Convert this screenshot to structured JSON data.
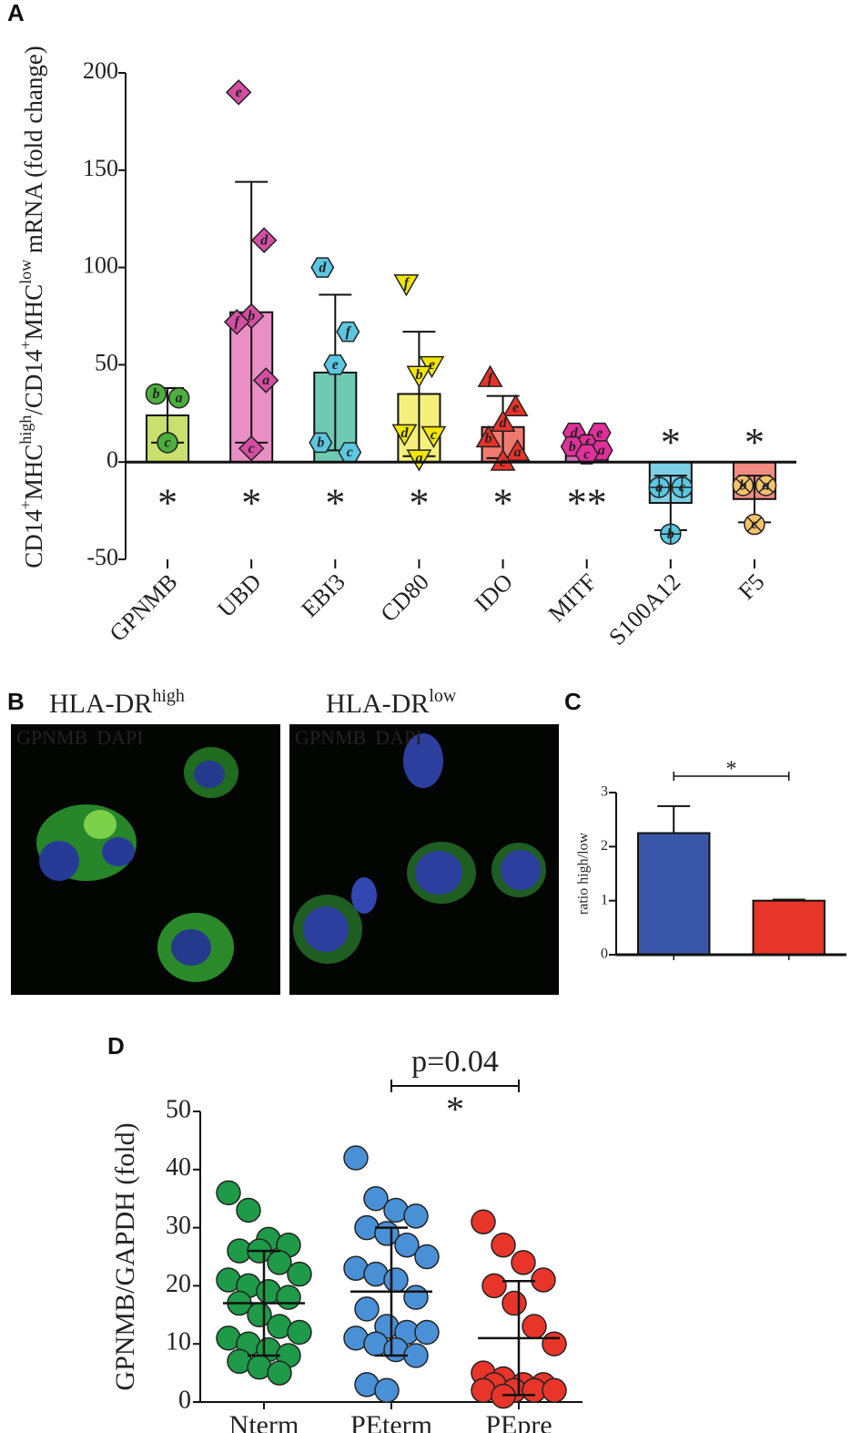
{
  "chart_data": [
    {
      "type": "bar",
      "panel_label": "A",
      "categories": [
        "GPNMB",
        "UBD",
        "EBI3",
        "CD80",
        "IDO",
        "MITF",
        "S100A12",
        "F5"
      ],
      "values": [
        24,
        77,
        46,
        35,
        18,
        9,
        -21,
        -19
      ],
      "errors": [
        14,
        67,
        40,
        32,
        16,
        5,
        14,
        12
      ],
      "error_direction": "both",
      "colors": [
        "#c9e06f",
        "#ea8fc6",
        "#6fcab4",
        "#f6ef7c",
        "#f17a70",
        "#d86cba",
        "#7dcfe6",
        "#f28b82"
      ],
      "markers": [
        "circle",
        "diamond",
        "hexagon",
        "triangle-down",
        "triangle",
        "hexagon",
        "circle-plus",
        "circle-x"
      ],
      "marker_colors": [
        "#4dae3f",
        "#d44fa3",
        "#5bc7e0",
        "#f2e600",
        "#e8332a",
        "#e0309a",
        "#5bc7e0",
        "#f5c36b"
      ],
      "label_colors": [
        "#000000",
        "#ffffff",
        "#000000",
        "#000000",
        "#ffffff",
        "#ffffff",
        "#000000",
        "#ffffff"
      ],
      "points": [
        [
          {
            "label": "b",
            "value": 35
          },
          {
            "label": "a",
            "value": 33
          },
          {
            "label": "c",
            "value": 10
          }
        ],
        [
          {
            "label": "e",
            "value": 190
          },
          {
            "label": "d",
            "value": 114
          },
          {
            "label": "b",
            "value": 75
          },
          {
            "label": "f",
            "value": 72
          },
          {
            "label": "a",
            "value": 42
          },
          {
            "label": "c",
            "value": 7
          }
        ],
        [
          {
            "label": "d",
            "value": 100
          },
          {
            "label": "f",
            "value": 67
          },
          {
            "label": "e",
            "value": 50
          },
          {
            "label": "b",
            "value": 10
          },
          {
            "label": "c",
            "value": 5
          }
        ],
        [
          {
            "label": "f",
            "value": 92
          },
          {
            "label": "e",
            "value": 50
          },
          {
            "label": "b",
            "value": 45
          },
          {
            "label": "d",
            "value": 15
          },
          {
            "label": "c",
            "value": 14
          },
          {
            "label": "a",
            "value": 2
          }
        ],
        [
          {
            "label": "f",
            "value": 43
          },
          {
            "label": "e",
            "value": 28
          },
          {
            "label": "d",
            "value": 20
          },
          {
            "label": "b",
            "value": 12
          },
          {
            "label": "a",
            "value": 5
          },
          {
            "label": "c",
            "value": 0
          }
        ],
        [
          {
            "label": "d",
            "value": 15
          },
          {
            "label": "e",
            "value": 15
          },
          {
            "label": "f",
            "value": 9
          },
          {
            "label": "b",
            "value": 8
          },
          {
            "label": "a",
            "value": 6
          },
          {
            "label": "c",
            "value": 4
          }
        ],
        [
          {
            "label": "a",
            "value": -13
          },
          {
            "label": "c",
            "value": -13
          },
          {
            "label": "b",
            "value": -37
          }
        ],
        [
          {
            "label": "b",
            "value": -12
          },
          {
            "label": "a",
            "value": -12
          },
          {
            "label": "c",
            "value": -32
          }
        ]
      ],
      "significance": [
        "*",
        "*",
        "*",
        "*",
        "*",
        "**",
        "*",
        "*"
      ],
      "ylim": [
        -50,
        200
      ],
      "yticks": [
        -50,
        0,
        50,
        100,
        150,
        200
      ],
      "ylabel_parts": [
        {
          "text": "CD14"
        },
        {
          "text": "+",
          "sup": true
        },
        {
          "text": "MHC"
        },
        {
          "text": "high",
          "sup": true
        },
        {
          "text": "/CD14"
        },
        {
          "text": "+",
          "sup": true
        },
        {
          "text": "MHC"
        },
        {
          "text": "low",
          "sup": true
        },
        {
          "text": " mRNA (fold change)"
        }
      ]
    },
    {
      "type": "bar",
      "panel_label": "C",
      "categories": [
        null,
        null
      ],
      "values": [
        2.25,
        1.0
      ],
      "errors": [
        0.5,
        0.02
      ],
      "error_direction": "up",
      "colors": [
        "#3a56a8",
        "#e8352a"
      ],
      "ylim": [
        0,
        3
      ],
      "yticks": [
        0,
        1,
        2,
        3
      ],
      "ylabel": "ratio high/low",
      "annotation": "*"
    },
    {
      "type": "strip",
      "panel_label": "D",
      "categories": [
        "Nterm",
        "PEterm",
        "PEpre"
      ],
      "colors": [
        "#1e9a48",
        "#4a90d6",
        "#e8352a"
      ],
      "values": [
        [
          36,
          33,
          28,
          27,
          26,
          26,
          24,
          22,
          21,
          20,
          19,
          18,
          17,
          15,
          13,
          12,
          11,
          10,
          9,
          8,
          7,
          6,
          5
        ],
        [
          42,
          35,
          33,
          32,
          30,
          29,
          27,
          25,
          23,
          22,
          21,
          18,
          16,
          13,
          12,
          12,
          11,
          10,
          9,
          8,
          3,
          2
        ],
        [
          31,
          27,
          24,
          21,
          20,
          17,
          13,
          10,
          5,
          4,
          3,
          3,
          3,
          2,
          2,
          2,
          2,
          1
        ]
      ],
      "means": [
        17,
        19,
        11
      ],
      "sd": [
        9,
        11,
        9.8
      ],
      "ylim": [
        0,
        50
      ],
      "yticks": [
        0,
        10,
        20,
        30,
        40,
        50
      ],
      "ylabel": "GPNMB/GAPDH (fold)",
      "annotation": "p=0.04",
      "annotation_2": "*"
    }
  ],
  "panel_b": {
    "panel_label": "B",
    "images": [
      {
        "title": "HLA-DR",
        "title_sup": "high",
        "stains": [
          "GPNMB",
          "DAPI"
        ]
      },
      {
        "title": "HLA-DR",
        "title_sup": "low",
        "stains": [
          "GPNMB",
          "DAPI"
        ]
      }
    ]
  }
}
